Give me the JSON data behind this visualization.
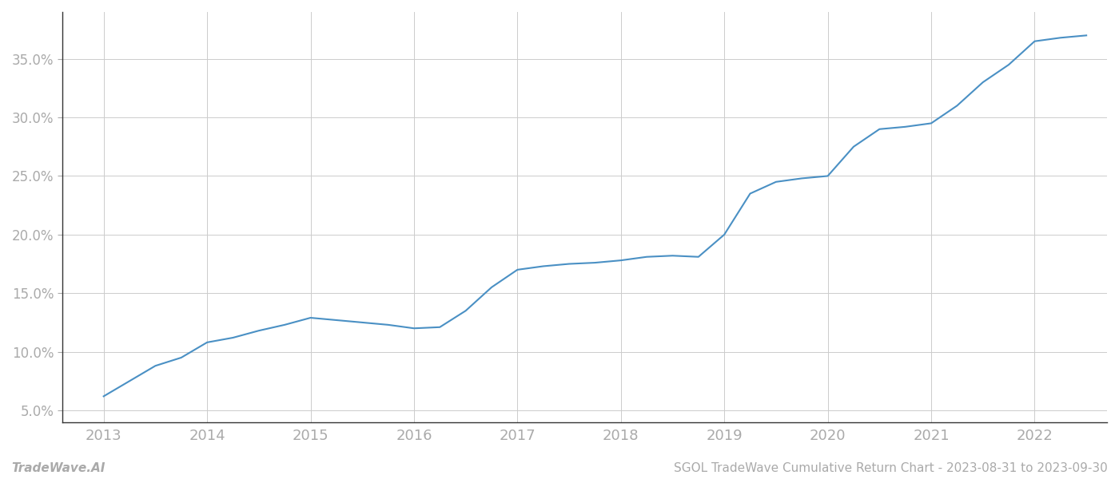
{
  "x_values": [
    2013.0,
    2013.25,
    2013.5,
    2013.75,
    2014.0,
    2014.25,
    2014.5,
    2014.75,
    2015.0,
    2015.25,
    2015.5,
    2015.75,
    2016.0,
    2016.25,
    2016.5,
    2016.75,
    2017.0,
    2017.25,
    2017.5,
    2017.75,
    2018.0,
    2018.25,
    2018.5,
    2018.75,
    2019.0,
    2019.25,
    2019.5,
    2019.75,
    2020.0,
    2020.25,
    2020.5,
    2020.75,
    2021.0,
    2021.25,
    2021.5,
    2021.75,
    2022.0,
    2022.25,
    2022.5
  ],
  "y_values": [
    6.2,
    7.5,
    8.8,
    9.5,
    10.8,
    11.2,
    11.8,
    12.3,
    12.9,
    12.7,
    12.5,
    12.3,
    12.0,
    12.1,
    13.5,
    15.5,
    17.0,
    17.3,
    17.5,
    17.6,
    17.8,
    18.1,
    18.2,
    18.1,
    20.0,
    23.5,
    24.5,
    24.8,
    25.0,
    27.5,
    29.0,
    29.2,
    29.5,
    31.0,
    33.0,
    34.5,
    36.5,
    36.8,
    37.0
  ],
  "line_color": "#4a90c4",
  "line_width": 1.5,
  "background_color": "#ffffff",
  "grid_color": "#cccccc",
  "ylabel_ticks": [
    5.0,
    10.0,
    15.0,
    20.0,
    25.0,
    30.0,
    35.0
  ],
  "ylim": [
    4.0,
    39.0
  ],
  "xlim": [
    2012.6,
    2022.7
  ],
  "xticks": [
    2013,
    2014,
    2015,
    2016,
    2017,
    2018,
    2019,
    2020,
    2021,
    2022
  ],
  "footer_left": "TradeWave.AI",
  "footer_right": "SGOL TradeWave Cumulative Return Chart - 2023-08-31 to 2023-09-30",
  "tick_color": "#aaaaaa",
  "footer_color": "#aaaaaa",
  "left_spine_color": "#333333",
  "bottom_spine_color": "#333333"
}
